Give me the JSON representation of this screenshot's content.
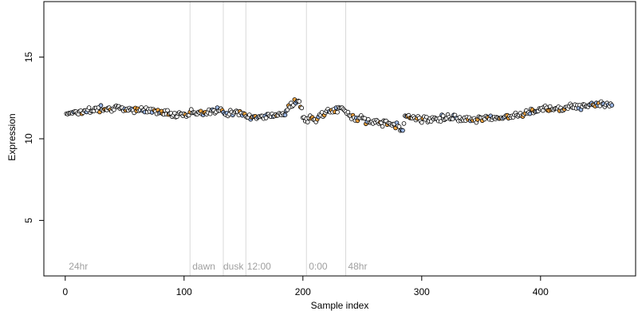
{
  "chart_data": {
    "type": "scatter",
    "xlabel": "Sample index",
    "ylabel": "Expression",
    "xlim": [
      -18,
      480
    ],
    "ylim": [
      1.6,
      18.4
    ],
    "x_ticks": [
      0,
      100,
      200,
      300,
      400
    ],
    "y_ticks": [
      5,
      10,
      15
    ],
    "grid": false,
    "vertical_lines": [
      105,
      133,
      152,
      203,
      236
    ],
    "annotations": [
      {
        "x": 3,
        "text": "24hr"
      },
      {
        "x": 107,
        "text": "dawn"
      },
      {
        "x": 133,
        "text": "dusk"
      },
      {
        "x": 153,
        "text": "12:00"
      },
      {
        "x": 205,
        "text": "0:00"
      },
      {
        "x": 238,
        "text": "48hr"
      }
    ],
    "colors": {
      "point_edge": "#000000",
      "point_fill_default": "#ffffff",
      "point_fill_orange": "#f4a641",
      "point_fill_blue": "#9bb7e6",
      "vline": "#d9d9d9",
      "annotation": "#a0a0a0"
    },
    "trend_keypoints": [
      [
        0,
        11.6
      ],
      [
        20,
        11.7
      ],
      [
        30,
        11.9
      ],
      [
        60,
        11.8
      ],
      [
        100,
        11.5
      ],
      [
        110,
        11.6
      ],
      [
        130,
        11.7
      ],
      [
        150,
        11.5
      ],
      [
        160,
        11.3
      ],
      [
        175,
        11.4
      ],
      [
        185,
        11.6
      ],
      [
        192,
        12.2
      ],
      [
        197,
        12.3
      ],
      [
        201,
        11.2
      ],
      [
        210,
        11.2
      ],
      [
        220,
        11.6
      ],
      [
        232,
        11.9
      ],
      [
        240,
        11.4
      ],
      [
        260,
        11.0
      ],
      [
        280,
        10.9
      ],
      [
        283,
        10.5
      ],
      [
        287,
        11.4
      ],
      [
        300,
        11.2
      ],
      [
        320,
        11.3
      ],
      [
        350,
        11.2
      ],
      [
        380,
        11.4
      ],
      [
        400,
        11.8
      ],
      [
        420,
        11.9
      ],
      [
        440,
        12.1
      ],
      [
        460,
        12.1
      ]
    ],
    "series": [
      {
        "name": "",
        "n": 460,
        "x_start": 1,
        "x_end": 460,
        "noise": 0.3
      }
    ]
  }
}
